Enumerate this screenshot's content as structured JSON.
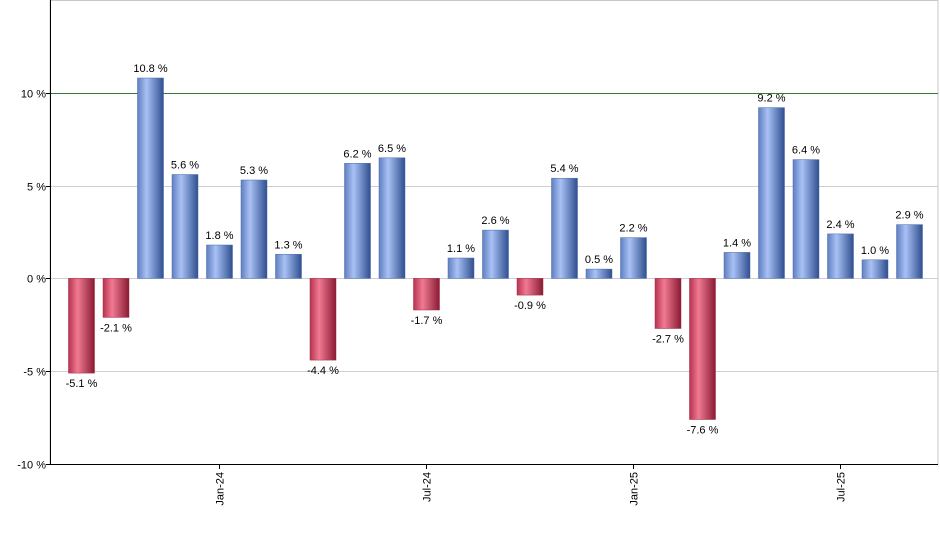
{
  "chart_data": {
    "type": "bar",
    "title": "",
    "xlabel": "",
    "ylabel": "",
    "ylim": [
      -10,
      15
    ],
    "y_ticks": [
      -10,
      -5,
      0,
      5,
      10
    ],
    "y_tick_labels": [
      "-10 %",
      "-5 %",
      "0 %",
      "5 %",
      "10 %"
    ],
    "reference_line": {
      "value": 10,
      "color": "#2e7d32"
    },
    "grid": true,
    "x_tick_labels": [
      {
        "label": "Jan-24",
        "index": 4
      },
      {
        "label": "Jul-24",
        "index": 10
      },
      {
        "label": "Jan-25",
        "index": 16
      },
      {
        "label": "Jul-25",
        "index": 22
      }
    ],
    "values": [
      -5.1,
      -2.1,
      10.8,
      5.6,
      1.8,
      5.3,
      1.3,
      -4.4,
      6.2,
      6.5,
      -1.7,
      1.1,
      2.6,
      -0.9,
      5.4,
      0.5,
      2.2,
      -2.7,
      -7.6,
      1.4,
      9.2,
      6.4,
      2.4,
      1.0,
      2.9
    ],
    "value_labels": [
      "-5.1 %",
      "-2.1 %",
      "10.8 %",
      "5.6 %",
      "1.8 %",
      "5.3 %",
      "1.3 %",
      "-4.4 %",
      "6.2 %",
      "6.5 %",
      "-1.7 %",
      "1.1 %",
      "2.6 %",
      "-0.9 %",
      "5.4 %",
      "0.5 %",
      "2.2 %",
      "-2.7 %",
      "-7.6 %",
      "1.4 %",
      "9.2 %",
      "6.4 %",
      "2.4 %",
      "1.0 %",
      "2.9 %"
    ],
    "colors": {
      "positive": "#7f9fe0",
      "negative": "#d4405f"
    }
  }
}
